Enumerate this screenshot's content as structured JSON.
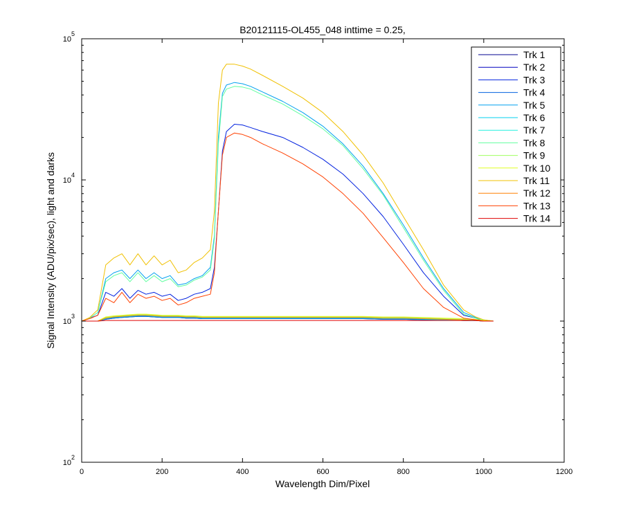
{
  "chart_data": {
    "type": "line",
    "title": "B20121115-OL455_048 inttime = 0.25,",
    "xlabel": "Wavelength Dim/Pixel",
    "ylabel": "Signal Intensity (ADU/pix/sec), light and darks",
    "xlim": [
      0,
      1200
    ],
    "ylim": [
      100,
      100000
    ],
    "yscale": "log",
    "grid": false,
    "legend_position": "top-right",
    "x_ticks": [
      "0",
      "200",
      "400",
      "600",
      "800",
      "1000",
      "1200"
    ],
    "y_ticks": [
      {
        "base": "10",
        "exp": "2"
      },
      {
        "base": "10",
        "exp": "3"
      },
      {
        "base": "10",
        "exp": "4"
      },
      {
        "base": "10",
        "exp": "5"
      }
    ],
    "x": [
      0,
      20,
      40,
      60,
      80,
      100,
      120,
      140,
      160,
      180,
      200,
      220,
      240,
      260,
      280,
      300,
      320,
      330,
      340,
      350,
      360,
      380,
      400,
      420,
      450,
      500,
      550,
      600,
      650,
      700,
      750,
      800,
      850,
      900,
      950,
      980,
      1000,
      1024
    ],
    "series": [
      {
        "name": "Trk 1",
        "color": "#00008f",
        "values": [
          1000,
          1000,
          1000,
          1030,
          1050,
          1060,
          1070,
          1080,
          1080,
          1070,
          1060,
          1060,
          1060,
          1050,
          1050,
          1040,
          1040,
          1040,
          1040,
          1040,
          1040,
          1040,
          1040,
          1040,
          1040,
          1040,
          1040,
          1040,
          1040,
          1040,
          1030,
          1030,
          1020,
          1020,
          1010,
          1010,
          1000,
          1000
        ]
      },
      {
        "name": "Trk 2",
        "color": "#0000bf",
        "values": [
          1000,
          1000,
          1000,
          1040,
          1060,
          1070,
          1080,
          1090,
          1090,
          1080,
          1070,
          1070,
          1070,
          1060,
          1060,
          1050,
          1050,
          1050,
          1050,
          1050,
          1050,
          1050,
          1050,
          1050,
          1050,
          1050,
          1050,
          1050,
          1050,
          1050,
          1040,
          1040,
          1030,
          1020,
          1010,
          1010,
          1000,
          1000
        ]
      },
      {
        "name": "Trk 3",
        "color": "#0020df",
        "values": [
          1000,
          1050,
          1100,
          1600,
          1500,
          1700,
          1450,
          1650,
          1550,
          1600,
          1500,
          1550,
          1400,
          1450,
          1550,
          1600,
          1700,
          2400,
          6000,
          16000,
          22000,
          24800,
          24500,
          23500,
          22000,
          20000,
          17000,
          14000,
          11000,
          8000,
          5500,
          3500,
          2200,
          1500,
          1100,
          1050,
          1000,
          1000
        ]
      },
      {
        "name": "Trk 4",
        "color": "#0060df",
        "values": [
          1000,
          1000,
          1000,
          1030,
          1050,
          1060,
          1070,
          1080,
          1080,
          1070,
          1060,
          1060,
          1060,
          1050,
          1050,
          1040,
          1040,
          1040,
          1040,
          1040,
          1040,
          1040,
          1040,
          1040,
          1040,
          1040,
          1040,
          1040,
          1040,
          1040,
          1030,
          1030,
          1020,
          1020,
          1010,
          1010,
          1000,
          1000
        ]
      },
      {
        "name": "Trk 5",
        "color": "#00a0ef",
        "values": [
          1000,
          1050,
          1150,
          2000,
          2200,
          2300,
          2000,
          2300,
          2000,
          2200,
          2000,
          2100,
          1800,
          1850,
          2000,
          2100,
          2400,
          4000,
          20000,
          41000,
          47000,
          49000,
          48000,
          46000,
          42000,
          36000,
          30000,
          24000,
          18000,
          12500,
          8000,
          4800,
          2800,
          1700,
          1150,
          1060,
          1020,
          1000
        ]
      },
      {
        "name": "Trk 6",
        "color": "#00d0ef",
        "values": [
          1000,
          1000,
          1000,
          1040,
          1060,
          1070,
          1080,
          1090,
          1090,
          1080,
          1070,
          1070,
          1070,
          1060,
          1060,
          1050,
          1050,
          1050,
          1050,
          1050,
          1050,
          1050,
          1050,
          1050,
          1050,
          1050,
          1050,
          1050,
          1050,
          1050,
          1040,
          1040,
          1030,
          1020,
          1010,
          1010,
          1000,
          1000
        ]
      },
      {
        "name": "Trk 7",
        "color": "#20f0df",
        "values": [
          1000,
          1000,
          1000,
          1050,
          1070,
          1080,
          1090,
          1100,
          1100,
          1090,
          1080,
          1080,
          1080,
          1070,
          1070,
          1060,
          1060,
          1060,
          1060,
          1060,
          1060,
          1060,
          1060,
          1060,
          1060,
          1060,
          1060,
          1060,
          1060,
          1060,
          1050,
          1050,
          1040,
          1030,
          1020,
          1010,
          1000,
          1000
        ]
      },
      {
        "name": "Trk 8",
        "color": "#60ff9f",
        "values": [
          1000,
          1050,
          1150,
          1900,
          2100,
          2200,
          1900,
          2200,
          1900,
          2100,
          1900,
          2000,
          1750,
          1800,
          1950,
          2050,
          2300,
          3800,
          18000,
          39000,
          44000,
          46000,
          45500,
          44000,
          40000,
          34500,
          28500,
          23000,
          17500,
          12000,
          7800,
          4600,
          2700,
          1650,
          1120,
          1050,
          1020,
          1000
        ]
      },
      {
        "name": "Trk 9",
        "color": "#a0ff5f",
        "values": [
          1000,
          1000,
          1000,
          1060,
          1080,
          1090,
          1100,
          1110,
          1110,
          1100,
          1090,
          1090,
          1090,
          1080,
          1080,
          1070,
          1070,
          1070,
          1070,
          1070,
          1070,
          1070,
          1070,
          1070,
          1070,
          1070,
          1070,
          1070,
          1070,
          1070,
          1060,
          1060,
          1050,
          1040,
          1030,
          1020,
          1010,
          1000
        ]
      },
      {
        "name": "Trk 10",
        "color": "#dfff20",
        "values": [
          1000,
          1000,
          1000,
          1070,
          1090,
          1100,
          1110,
          1120,
          1120,
          1110,
          1100,
          1100,
          1100,
          1090,
          1090,
          1080,
          1080,
          1080,
          1080,
          1080,
          1080,
          1080,
          1080,
          1080,
          1080,
          1080,
          1080,
          1080,
          1080,
          1080,
          1070,
          1070,
          1060,
          1050,
          1040,
          1030,
          1010,
          1000
        ]
      },
      {
        "name": "Trk 11",
        "color": "#f0c000",
        "values": [
          1000,
          1060,
          1200,
          2500,
          2800,
          3000,
          2500,
          3000,
          2500,
          2900,
          2500,
          2700,
          2200,
          2300,
          2600,
          2800,
          3200,
          6000,
          35000,
          60000,
          66000,
          66000,
          64000,
          61000,
          55000,
          46000,
          38000,
          30000,
          22000,
          15000,
          9500,
          5500,
          3200,
          1800,
          1200,
          1070,
          1020,
          1000
        ]
      },
      {
        "name": "Trk 12",
        "color": "#ff8000",
        "values": [
          1000,
          1000,
          1000,
          1050,
          1070,
          1080,
          1090,
          1100,
          1100,
          1090,
          1080,
          1080,
          1080,
          1070,
          1070,
          1060,
          1060,
          1060,
          1060,
          1060,
          1060,
          1060,
          1060,
          1060,
          1060,
          1060,
          1060,
          1060,
          1060,
          1060,
          1050,
          1050,
          1040,
          1030,
          1020,
          1010,
          1000,
          1000
        ]
      },
      {
        "name": "Trk 13",
        "color": "#ff4000",
        "values": [
          1000,
          1040,
          1100,
          1450,
          1350,
          1600,
          1350,
          1550,
          1450,
          1500,
          1400,
          1450,
          1300,
          1350,
          1450,
          1500,
          1550,
          2200,
          6000,
          15000,
          20000,
          21500,
          21000,
          20000,
          18000,
          15500,
          13000,
          10500,
          8000,
          5800,
          3900,
          2600,
          1700,
          1250,
          1050,
          1020,
          1000,
          1000
        ]
      },
      {
        "name": "Trk 14",
        "color": "#df0000",
        "values": [
          1000,
          1000,
          1000,
          1010,
          1010,
          1010,
          1010,
          1010,
          1010,
          1010,
          1010,
          1010,
          1010,
          1010,
          1010,
          1010,
          1010,
          1010,
          1010,
          1010,
          1010,
          1010,
          1010,
          1010,
          1010,
          1010,
          1010,
          1010,
          1010,
          1010,
          1010,
          1010,
          1010,
          1010,
          1010,
          1010,
          1000,
          1000
        ]
      }
    ]
  }
}
